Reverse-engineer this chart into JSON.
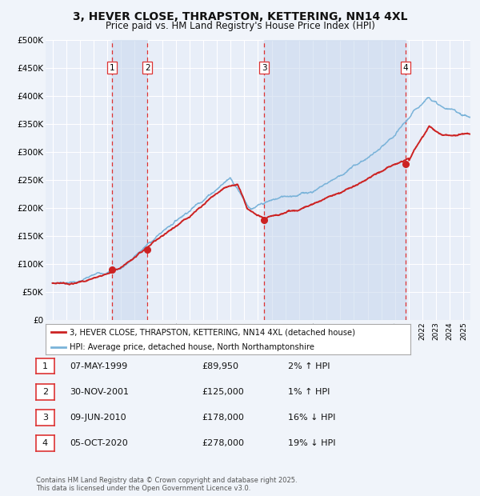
{
  "title": "3, HEVER CLOSE, THRAPSTON, KETTERING, NN14 4XL",
  "subtitle": "Price paid vs. HM Land Registry's House Price Index (HPI)",
  "footer": "Contains HM Land Registry data © Crown copyright and database right 2025.\nThis data is licensed under the Open Government Licence v3.0.",
  "legend_house": "3, HEVER CLOSE, THRAPSTON, KETTERING, NN14 4XL (detached house)",
  "legend_hpi": "HPI: Average price, detached house, North Northamptonshire",
  "transactions": [
    {
      "num": 1,
      "date": "07-MAY-1999",
      "price": "£89,950",
      "pct": "2%",
      "dir": "↑",
      "year": 1999.35
    },
    {
      "num": 2,
      "date": "30-NOV-2001",
      "price": "£125,000",
      "pct": "1%",
      "dir": "↑",
      "year": 2001.92
    },
    {
      "num": 3,
      "date": "09-JUN-2010",
      "price": "£178,000",
      "pct": "16%",
      "dir": "↓",
      "year": 2010.44
    },
    {
      "num": 4,
      "date": "05-OCT-2020",
      "price": "£278,000",
      "pct": "19%",
      "dir": "↓",
      "year": 2020.75
    }
  ],
  "sale_prices": [
    89950,
    125000,
    178000,
    278000
  ],
  "sale_years": [
    1999.35,
    2001.92,
    2010.44,
    2020.75
  ],
  "ylim": [
    0,
    500000
  ],
  "xlim": [
    1994.5,
    2025.5
  ],
  "yticks": [
    0,
    50000,
    100000,
    150000,
    200000,
    250000,
    300000,
    350000,
    400000,
    450000,
    500000
  ],
  "ytick_labels": [
    "£0",
    "£50K",
    "£100K",
    "£150K",
    "£200K",
    "£250K",
    "£300K",
    "£350K",
    "£400K",
    "£450K",
    "£500K"
  ],
  "background_color": "#f0f4fa",
  "plot_bg_color": "#e8eef8",
  "grid_color": "#ffffff",
  "hpi_color": "#7ab3d9",
  "house_color": "#cc2222",
  "dashed_line_color": "#dd3333",
  "shade_color": "#c8d8ee",
  "title_fontsize": 10,
  "subtitle_fontsize": 8.5
}
